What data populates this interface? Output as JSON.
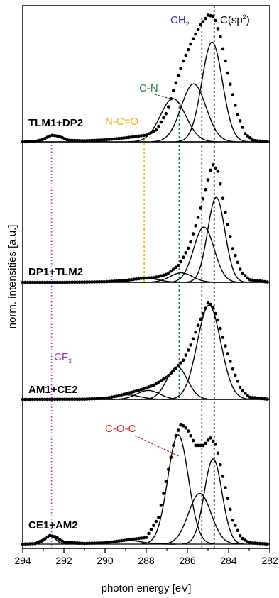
{
  "chart_data": {
    "type": "line",
    "xlabel": "photon energy [eV]",
    "ylabel": "norm. intensities [a.u.]",
    "xlim": [
      294,
      282
    ],
    "x_reversed": true,
    "x_ticks": [
      294,
      292,
      290,
      288,
      286,
      284,
      282
    ],
    "x_minor_ticks": [
      293,
      291,
      289,
      287,
      285,
      283
    ],
    "reference_lines": [
      {
        "label": "CF3",
        "label_main": "CF",
        "label_sub": "3",
        "energy": 292.6,
        "color": "#9933bb",
        "style": "dotted"
      },
      {
        "label": "N-C=O",
        "energy": 288.1,
        "color": "#f0b400",
        "style": "dashed"
      },
      {
        "label": "C-N",
        "energy": 286.4,
        "color": "#2f7a4a",
        "style": "dashed"
      },
      {
        "label": "CH2",
        "label_main": "CH",
        "label_sub": "2",
        "energy": 285.3,
        "color": "#333399",
        "style": "dashed"
      },
      {
        "label": "C(sp2)",
        "label_main": "C(sp",
        "label_sup": "2",
        "label_end": ")",
        "energy": 284.7,
        "color": "#000000",
        "style": "dashed"
      }
    ],
    "annotations": [
      {
        "text": "C-O-C",
        "color": "#dd2222"
      }
    ],
    "panels": [
      {
        "name": "TLM1+DP2",
        "baseline": 0.0,
        "data": [
          {
            "x": 294.0,
            "y": 0.0
          },
          {
            "x": 293.4,
            "y": 0.003
          },
          {
            "x": 293.0,
            "y": 0.018
          },
          {
            "x": 292.6,
            "y": 0.05
          },
          {
            "x": 292.2,
            "y": 0.04
          },
          {
            "x": 291.8,
            "y": 0.012
          },
          {
            "x": 291.0,
            "y": 0.008
          },
          {
            "x": 290.0,
            "y": 0.015
          },
          {
            "x": 289.0,
            "y": 0.03
          },
          {
            "x": 288.0,
            "y": 0.05
          },
          {
            "x": 287.5,
            "y": 0.09
          },
          {
            "x": 287.0,
            "y": 0.22
          },
          {
            "x": 286.6,
            "y": 0.42
          },
          {
            "x": 286.2,
            "y": 0.6
          },
          {
            "x": 285.8,
            "y": 0.74
          },
          {
            "x": 285.4,
            "y": 0.86
          },
          {
            "x": 285.0,
            "y": 0.94
          },
          {
            "x": 284.7,
            "y": 0.93
          },
          {
            "x": 284.4,
            "y": 0.78
          },
          {
            "x": 284.0,
            "y": 0.48
          },
          {
            "x": 283.6,
            "y": 0.22
          },
          {
            "x": 283.2,
            "y": 0.06
          },
          {
            "x": 282.8,
            "y": 0.01
          },
          {
            "x": 282.0,
            "y": 0.0
          }
        ],
        "components": [
          {
            "center": 284.8,
            "amplitude": 0.74,
            "width": 0.5
          },
          {
            "center": 285.7,
            "amplitude": 0.43,
            "width": 0.6
          },
          {
            "center": 286.7,
            "amplitude": 0.32,
            "width": 0.62
          }
        ]
      },
      {
        "name": "DP1+TLM2",
        "baseline": 0.0,
        "data": [
          {
            "x": 294.0,
            "y": 0.0
          },
          {
            "x": 292.0,
            "y": 0.0
          },
          {
            "x": 290.0,
            "y": 0.004
          },
          {
            "x": 289.0,
            "y": 0.015
          },
          {
            "x": 288.2,
            "y": 0.03
          },
          {
            "x": 287.6,
            "y": 0.035
          },
          {
            "x": 287.0,
            "y": 0.06
          },
          {
            "x": 286.4,
            "y": 0.13
          },
          {
            "x": 285.9,
            "y": 0.27
          },
          {
            "x": 285.5,
            "y": 0.47
          },
          {
            "x": 285.1,
            "y": 0.7
          },
          {
            "x": 284.8,
            "y": 0.88
          },
          {
            "x": 284.5,
            "y": 0.82
          },
          {
            "x": 284.2,
            "y": 0.55
          },
          {
            "x": 283.8,
            "y": 0.25
          },
          {
            "x": 283.4,
            "y": 0.08
          },
          {
            "x": 283.0,
            "y": 0.02
          },
          {
            "x": 282.0,
            "y": 0.0
          }
        ],
        "components": [
          {
            "center": 284.6,
            "amplitude": 0.63,
            "width": 0.42
          },
          {
            "center": 285.2,
            "amplitude": 0.41,
            "width": 0.5
          },
          {
            "center": 286.3,
            "amplitude": 0.07,
            "width": 0.55
          },
          {
            "center": 288.0,
            "amplitude": 0.03,
            "width": 0.6
          }
        ]
      },
      {
        "name": "AM1+CE2",
        "baseline": 0.0,
        "data": [
          {
            "x": 294.0,
            "y": 0.0
          },
          {
            "x": 291.0,
            "y": 0.002
          },
          {
            "x": 290.0,
            "y": 0.01
          },
          {
            "x": 289.4,
            "y": 0.03
          },
          {
            "x": 288.8,
            "y": 0.06
          },
          {
            "x": 288.2,
            "y": 0.09
          },
          {
            "x": 287.6,
            "y": 0.13
          },
          {
            "x": 287.0,
            "y": 0.2
          },
          {
            "x": 286.6,
            "y": 0.27
          },
          {
            "x": 286.2,
            "y": 0.35
          },
          {
            "x": 285.8,
            "y": 0.5
          },
          {
            "x": 285.4,
            "y": 0.7
          },
          {
            "x": 285.0,
            "y": 0.86
          },
          {
            "x": 284.8,
            "y": 0.84
          },
          {
            "x": 284.5,
            "y": 0.7
          },
          {
            "x": 284.2,
            "y": 0.5
          },
          {
            "x": 283.8,
            "y": 0.27
          },
          {
            "x": 283.4,
            "y": 0.09
          },
          {
            "x": 283.0,
            "y": 0.02
          },
          {
            "x": 282.0,
            "y": 0.0
          }
        ],
        "components": [
          {
            "center": 284.95,
            "amplitude": 0.84,
            "width": 0.57
          },
          {
            "center": 286.5,
            "amplitude": 0.29,
            "width": 0.5
          },
          {
            "center": 287.9,
            "amplitude": 0.08,
            "width": 0.55
          },
          {
            "center": 288.9,
            "amplitude": 0.04,
            "width": 0.6
          }
        ]
      },
      {
        "name": "CE1+AM2",
        "baseline": 0.0,
        "data": [
          {
            "x": 294.0,
            "y": 0.0
          },
          {
            "x": 293.4,
            "y": 0.004
          },
          {
            "x": 293.0,
            "y": 0.03
          },
          {
            "x": 292.7,
            "y": 0.065
          },
          {
            "x": 292.4,
            "y": 0.055
          },
          {
            "x": 292.0,
            "y": 0.015
          },
          {
            "x": 291.0,
            "y": 0.005
          },
          {
            "x": 290.0,
            "y": 0.01
          },
          {
            "x": 289.0,
            "y": 0.03
          },
          {
            "x": 288.0,
            "y": 0.05
          },
          {
            "x": 287.4,
            "y": 0.2
          },
          {
            "x": 287.0,
            "y": 0.5
          },
          {
            "x": 286.6,
            "y": 0.8
          },
          {
            "x": 286.3,
            "y": 0.9
          },
          {
            "x": 286.0,
            "y": 0.86
          },
          {
            "x": 285.6,
            "y": 0.74
          },
          {
            "x": 285.2,
            "y": 0.74
          },
          {
            "x": 284.9,
            "y": 0.8
          },
          {
            "x": 284.6,
            "y": 0.74
          },
          {
            "x": 284.2,
            "y": 0.45
          },
          {
            "x": 283.8,
            "y": 0.18
          },
          {
            "x": 283.4,
            "y": 0.05
          },
          {
            "x": 283.0,
            "y": 0.01
          },
          {
            "x": 282.0,
            "y": 0.0
          }
        ],
        "components": [
          {
            "center": 286.45,
            "amplitude": 0.82,
            "width": 0.5
          },
          {
            "center": 284.75,
            "amplitude": 0.64,
            "width": 0.43
          },
          {
            "center": 285.4,
            "amplitude": 0.38,
            "width": 0.55
          },
          {
            "center": 292.65,
            "amplitude": 0.06,
            "width": 0.25
          },
          {
            "center": 289.0,
            "amplitude": 0.03,
            "width": 0.7
          }
        ]
      }
    ]
  }
}
